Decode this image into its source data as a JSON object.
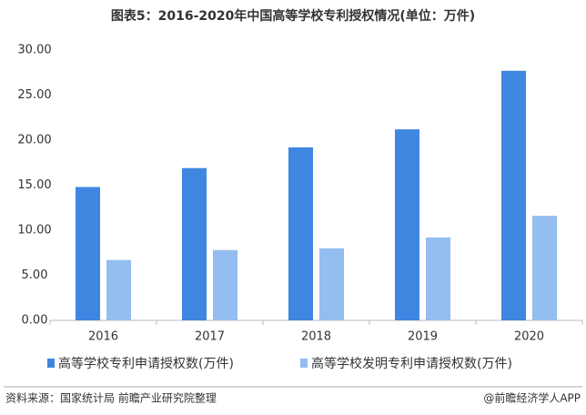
{
  "chart_data": {
    "type": "bar",
    "title": "图表5：2016-2020年中国高等学校专利授权情况(单位：万件)",
    "categories": [
      "2016",
      "2017",
      "2018",
      "2019",
      "2020"
    ],
    "series": [
      {
        "name": "高等学校专利申请授权数(万件)",
        "color": "#3f86e0",
        "values": [
          14.8,
          16.9,
          19.2,
          21.2,
          27.7
        ]
      },
      {
        "name": "高等学校发明专利申请授权数(万件)",
        "color": "#94bdf0",
        "values": [
          6.7,
          7.8,
          8.0,
          9.2,
          11.6
        ]
      }
    ],
    "ylim": [
      0,
      30
    ],
    "yticks": [
      {
        "value": 0,
        "label": "0.00"
      },
      {
        "value": 5,
        "label": "5.00"
      },
      {
        "value": 10,
        "label": "10.00"
      },
      {
        "value": 15,
        "label": "15.00"
      },
      {
        "value": 20,
        "label": "20.00"
      },
      {
        "value": 25,
        "label": "25.00"
      },
      {
        "value": 30,
        "label": "30.00"
      }
    ],
    "grid": false,
    "source": "资料来源：国家统计局 前瞻产业研究院整理",
    "credit": "@前瞻经济学人APP"
  }
}
